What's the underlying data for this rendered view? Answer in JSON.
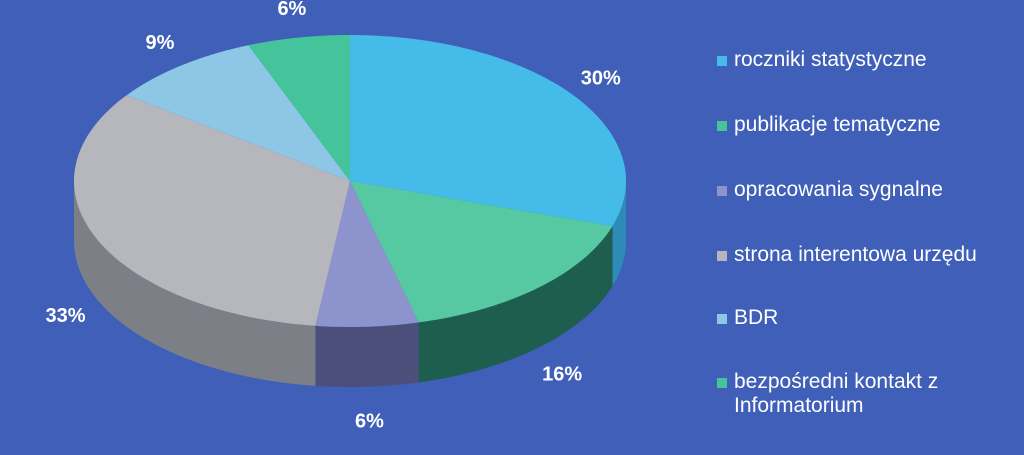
{
  "chart_data": {
    "type": "pie",
    "categories": [
      "roczniki statystyczne",
      "publikacje tematyczne",
      "opracowania sygnalne",
      "strona interentowa urzędu",
      "BDR",
      "bezpośredni kontakt z Informatorium"
    ],
    "values": [
      30,
      16,
      6,
      33,
      9,
      6
    ],
    "labels": [
      "30%",
      "16%",
      "6%",
      "33%",
      "9%",
      "6%"
    ],
    "colors": [
      "#45bbea",
      "#56c8a2",
      "#8d93cc",
      "#b6b7bd",
      "#8ec6e6",
      "#45c39a"
    ],
    "side_colors": [
      "#2e8bb8",
      "#1e5e4e",
      "#4b4f7a",
      "#7d7f87",
      "#5a8fae",
      "#2a7c60"
    ],
    "legend_position": "right",
    "title": "",
    "xlabel": "",
    "ylabel": ""
  },
  "legend": {
    "items": [
      {
        "label": "roczniki statystyczne",
        "color": "#45bbea"
      },
      {
        "label": "publikacje tematyczne",
        "color": "#45c39a"
      },
      {
        "label": "opracowania sygnalne",
        "color": "#8d93cc"
      },
      {
        "label": "strona interentowa urzędu",
        "color": "#b6b7bd"
      },
      {
        "label": "BDR",
        "color": "#8ec6e6"
      },
      {
        "label": "bezpośredni kontakt z Informatorium",
        "color": "#45c39a"
      }
    ]
  },
  "background_color": "#3f5fb8"
}
